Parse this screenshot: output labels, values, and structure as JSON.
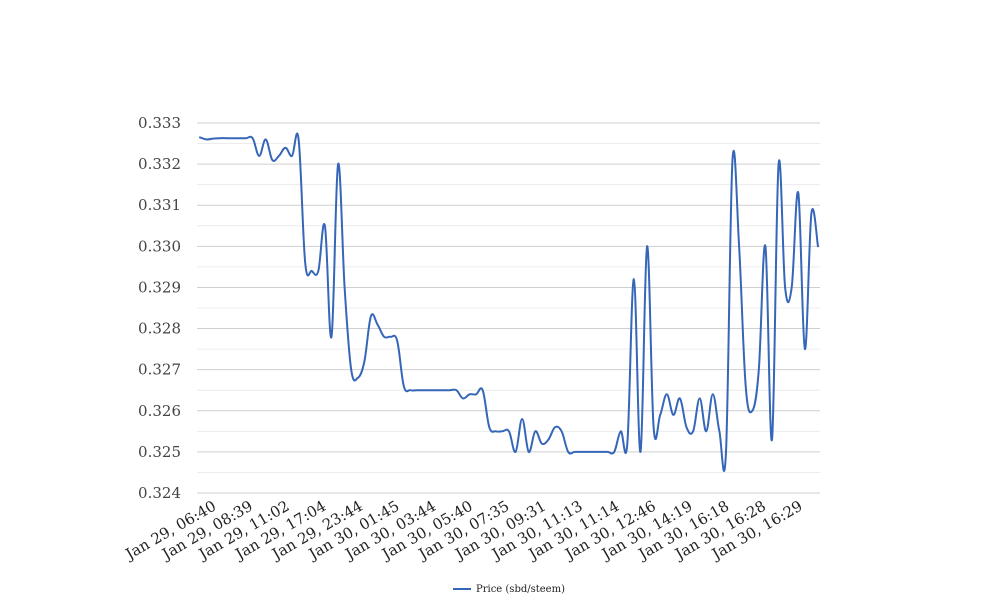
{
  "chart_data": {
    "type": "line",
    "title": "",
    "xlabel": "",
    "ylabel": "",
    "ylim": [
      0.324,
      0.333
    ],
    "yticks": [
      "0.324",
      "0.325",
      "0.326",
      "0.327",
      "0.328",
      "0.329",
      "0.330",
      "0.331",
      "0.332",
      "0.333"
    ],
    "xticks": [
      "Jan 29, 06:40",
      "Jan 29, 08:39",
      "Jan 29, 11:02",
      "Jan 29, 17:04",
      "Jan 29, 23:44",
      "Jan 30, 01:45",
      "Jan 30, 03:44",
      "Jan 30, 05:40",
      "Jan 30, 07:35",
      "Jan 30, 09:31",
      "Jan 30, 11:13",
      "Jan 30, 11:14",
      "Jan 30, 12:46",
      "Jan 30, 14:19",
      "Jan 30, 16:18",
      "Jan 30, 16:28",
      "Jan 30, 16:29"
    ],
    "grid": true,
    "legend_position": "bottom-center",
    "series": [
      {
        "name": "Price (sbd/steem)",
        "color": "#3566b8",
        "values": [
          0.33265,
          0.3326,
          0.33262,
          0.33263,
          0.33263,
          0.33263,
          0.33263,
          0.33263,
          0.33263,
          0.3322,
          0.3326,
          0.3321,
          0.3322,
          0.3324,
          0.3322,
          0.3326,
          0.3296,
          0.3294,
          0.3294,
          0.3305,
          0.3278,
          0.332,
          0.329,
          0.327,
          0.3268,
          0.3272,
          0.3283,
          0.3281,
          0.3278,
          0.3278,
          0.3277,
          0.3266,
          0.3265,
          0.3265,
          0.3265,
          0.3265,
          0.3265,
          0.3265,
          0.3265,
          0.3265,
          0.3263,
          0.3264,
          0.3264,
          0.3265,
          0.3256,
          0.3255,
          0.3255,
          0.3255,
          0.325,
          0.3258,
          0.325,
          0.3255,
          0.3252,
          0.3253,
          0.3256,
          0.3255,
          0.325,
          0.325,
          0.325,
          0.325,
          0.325,
          0.325,
          0.325,
          0.325,
          0.3255,
          0.3252,
          0.3292,
          0.325,
          0.33,
          0.3256,
          0.3259,
          0.3264,
          0.3259,
          0.3263,
          0.3256,
          0.3255,
          0.3263,
          0.3255,
          0.3264,
          0.3255,
          0.325,
          0.3321,
          0.33,
          0.3266,
          0.326,
          0.327,
          0.33,
          0.3253,
          0.332,
          0.329,
          0.329,
          0.3313,
          0.3275,
          0.3308,
          0.33
        ]
      }
    ]
  }
}
